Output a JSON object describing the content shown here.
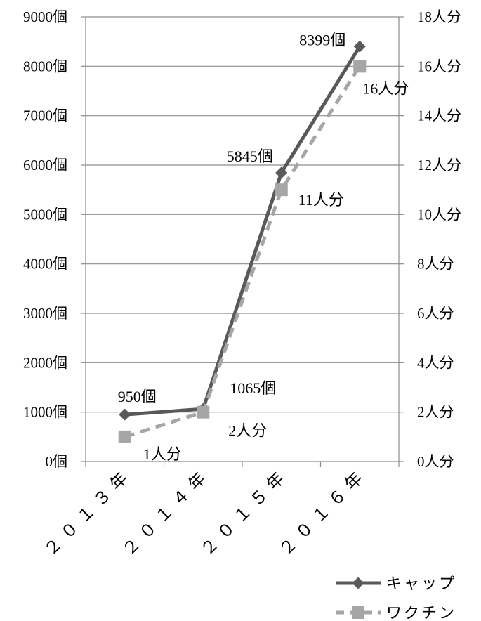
{
  "chart_data": {
    "type": "line",
    "categories": [
      "２０１３年",
      "２０１４年",
      "２０１５年",
      "２０１６年"
    ],
    "series": [
      {
        "name": "キャップ",
        "axis": "left",
        "values": [
          950,
          1065,
          5845,
          8399
        ],
        "labels": [
          "950個",
          "1065個",
          "5845個",
          "8399個"
        ],
        "color": "#595959",
        "style": "solid",
        "marker": "diamond"
      },
      {
        "name": "ワクチン",
        "axis": "right",
        "values": [
          1,
          2,
          11,
          16
        ],
        "labels": [
          "1人分",
          "2人分",
          "11人分",
          "16人分"
        ],
        "color": "#a6a6a6",
        "style": "dashed",
        "marker": "square"
      }
    ],
    "y_left": {
      "ylim": [
        0,
        9000
      ],
      "ticks": [
        "0個",
        "1000個",
        "2000個",
        "3000個",
        "4000個",
        "5000個",
        "6000個",
        "7000個",
        "8000個",
        "9000個"
      ]
    },
    "y_right": {
      "ylim": [
        0,
        18
      ],
      "ticks": [
        "0人分",
        "2人分",
        "4人分",
        "6人分",
        "8人分",
        "10人分",
        "12人分",
        "14人分",
        "16人分",
        "18人分"
      ]
    },
    "grid": true,
    "legend_position": "bottom-right"
  }
}
